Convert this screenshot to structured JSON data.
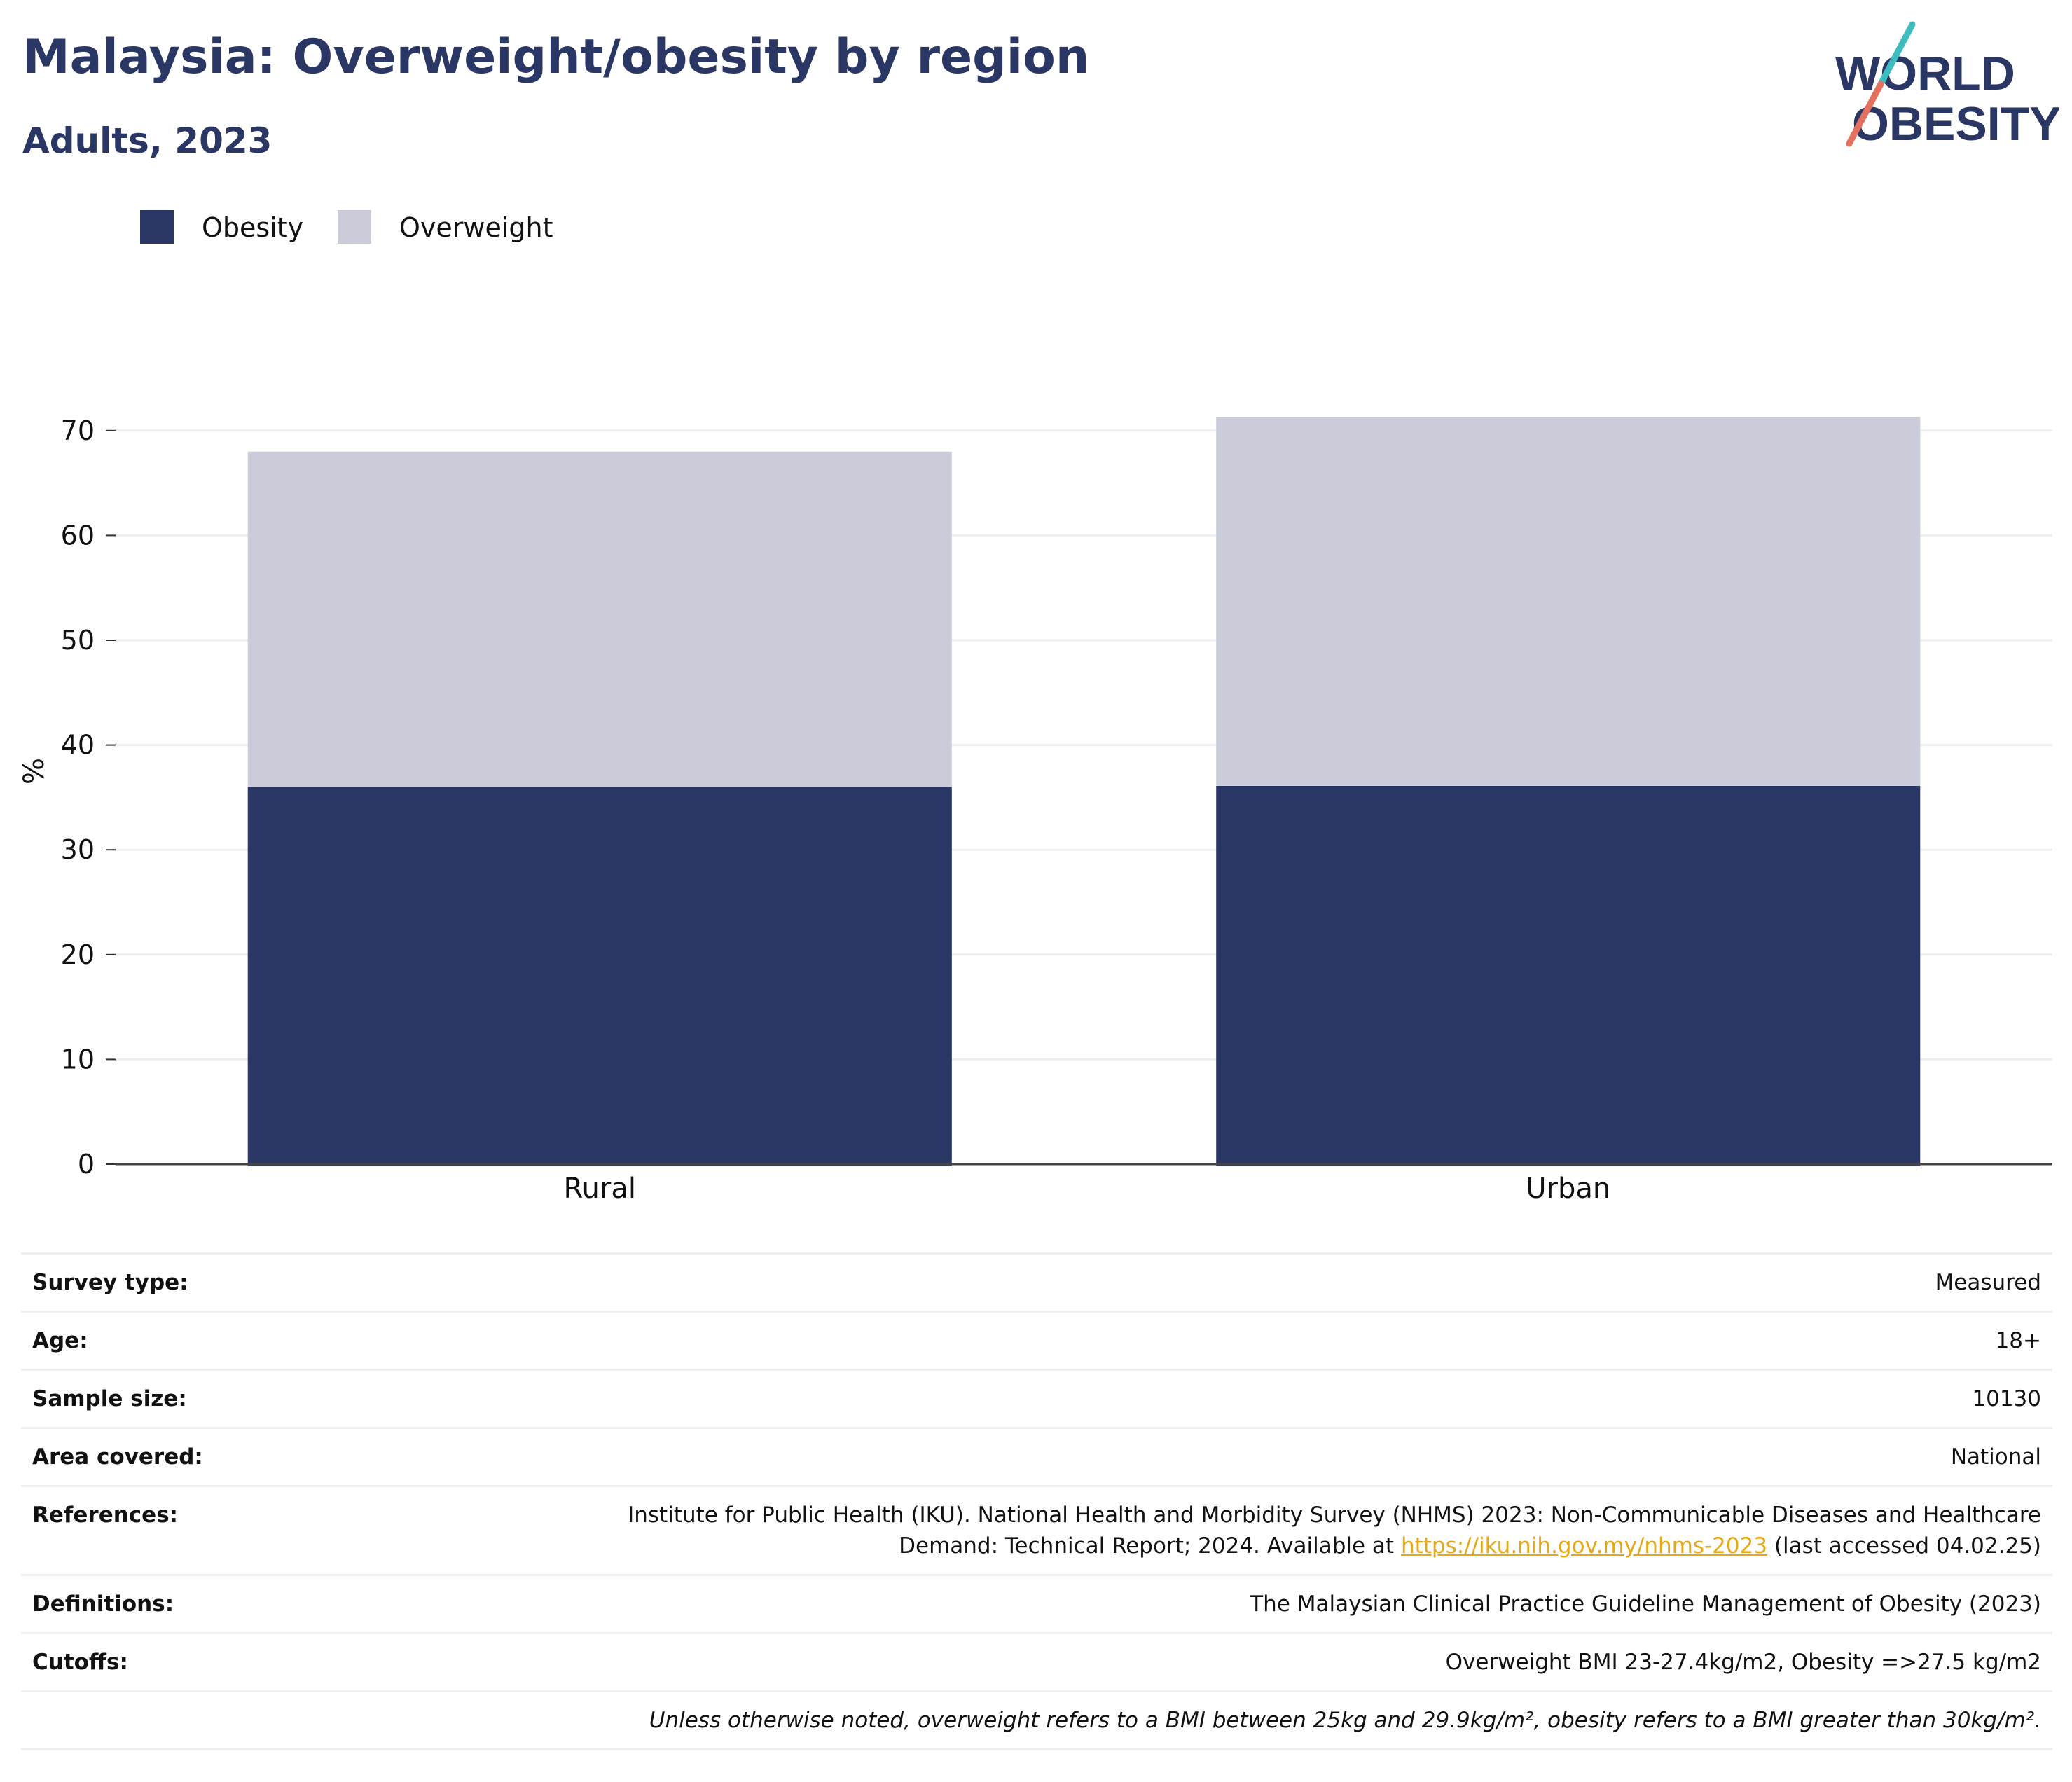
{
  "header": {
    "title": "Malaysia: Overweight/obesity by region",
    "subtitle": "Adults, 2023"
  },
  "logo": {
    "line1": "WORLD",
    "line2": "OBESITY"
  },
  "colors": {
    "obesity": "#2a3663",
    "overweight": "#cacdd9",
    "accent_teal": "#3dbdbf",
    "accent_coral": "#e4705f",
    "link": "#e6a817"
  },
  "chart_data": {
    "type": "bar",
    "stacked": true,
    "categories": [
      "Rural",
      "Urban"
    ],
    "series": [
      {
        "name": "Obesity",
        "values": [
          36.0,
          36.1
        ]
      },
      {
        "name": "Overweight",
        "values": [
          32.0,
          35.2
        ]
      }
    ],
    "ylabel": "%",
    "xlabel": "",
    "ylim": [
      0,
      75
    ],
    "yticks": [
      0,
      10,
      20,
      30,
      40,
      50,
      60,
      70
    ],
    "grid": true,
    "legend_position": "top-left"
  },
  "meta": {
    "rows": [
      {
        "label": "Survey type:",
        "value": "Measured"
      },
      {
        "label": "Age:",
        "value": "18+"
      },
      {
        "label": "Sample size:",
        "value": "10130"
      },
      {
        "label": "Area covered:",
        "value": "National"
      }
    ],
    "references": {
      "label": "References:",
      "line1": "Institute for Public Health (IKU). National Health and Morbidity Survey (NHMS) 2023: Non-Communicable Diseases and Healthcare",
      "line2_pre": "Demand: Technical Report; 2024. Available at ",
      "link": "https://iku.nih.gov.my/nhms-2023",
      "line2_post": " (last accessed 04.02.25)"
    },
    "definitions": {
      "label": "Definitions:",
      "value": "The Malaysian Clinical Practice Guideline Management of Obesity (2023)"
    },
    "cutoffs": {
      "label": "Cutoffs:",
      "value": "Overweight BMI 23-27.4kg/m2, Obesity =>27.5 kg/m2"
    },
    "note": "Unless otherwise noted, overweight refers to a BMI between 25kg and 29.9kg/m², obesity refers to a BMI greater than 30kg/m²."
  }
}
